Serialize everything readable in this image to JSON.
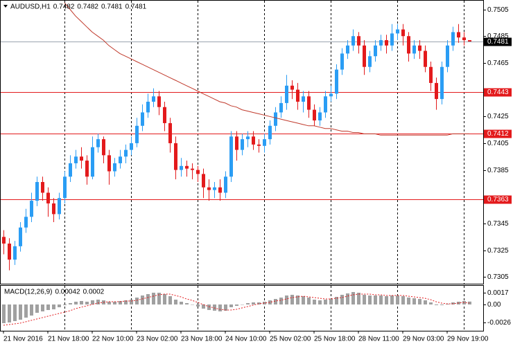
{
  "chart_data": {
    "type": "candlestick",
    "symbol": "AUDUSD,H1",
    "open": [
      0.7335,
      0.733,
      0.7318,
      0.7328,
      0.7342,
      0.735,
      0.7362,
      0.7376,
      0.7368,
      0.736,
      0.7352,
      0.7364,
      0.738,
      0.739,
      0.7395,
      0.7392,
      0.738,
      0.7402,
      0.7408,
      0.7396,
      0.7384,
      0.739,
      0.7395,
      0.74,
      0.7405,
      0.7418,
      0.7428,
      0.7436,
      0.744,
      0.7432,
      0.742,
      0.7405,
      0.7385,
      0.7388,
      0.7386,
      0.7385,
      0.7382,
      0.7372,
      0.737,
      0.7372,
      0.7368,
      0.738,
      0.741,
      0.74,
      0.7408,
      0.741,
      0.7404,
      0.7403,
      0.7408,
      0.7418,
      0.7428,
      0.7435,
      0.7448,
      0.7445,
      0.7436,
      0.744,
      0.743,
      0.7422,
      0.7428,
      0.744,
      0.7442,
      0.746,
      0.7472,
      0.7478,
      0.7485,
      0.7478,
      0.7462,
      0.747,
      0.7478,
      0.7482,
      0.7478,
      0.7487,
      0.749,
      0.7485,
      0.7472,
      0.7478,
      0.7474,
      0.7462,
      0.745,
      0.7438,
      0.7462,
      0.7478,
      0.7488,
      0.7484,
      0.7482
    ],
    "high": [
      0.734,
      0.7334,
      0.7332,
      0.7346,
      0.7356,
      0.7368,
      0.738,
      0.738,
      0.7372,
      0.7364,
      0.7368,
      0.7384,
      0.7396,
      0.74,
      0.7402,
      0.7396,
      0.741,
      0.7412,
      0.741,
      0.74,
      0.7394,
      0.74,
      0.7404,
      0.741,
      0.7424,
      0.7434,
      0.7442,
      0.7446,
      0.7444,
      0.7436,
      0.7424,
      0.741,
      0.7394,
      0.7392,
      0.739,
      0.7388,
      0.7386,
      0.7378,
      0.7376,
      0.7378,
      0.7384,
      0.7414,
      0.7414,
      0.7412,
      0.7414,
      0.7414,
      0.7408,
      0.7412,
      0.7422,
      0.7432,
      0.744,
      0.7456,
      0.7452,
      0.745,
      0.7444,
      0.7444,
      0.7434,
      0.7432,
      0.7444,
      0.7448,
      0.7464,
      0.7476,
      0.7482,
      0.749,
      0.7488,
      0.7482,
      0.7474,
      0.7482,
      0.7486,
      0.7486,
      0.7494,
      0.7494,
      0.7494,
      0.7488,
      0.7482,
      0.7482,
      0.7478,
      0.7466,
      0.7454,
      0.7466,
      0.7482,
      0.7492,
      0.7494,
      0.7488,
      0.7482
    ],
    "low": [
      0.7322,
      0.731,
      0.7314,
      0.7324,
      0.7338,
      0.7346,
      0.7358,
      0.7362,
      0.735,
      0.7346,
      0.7348,
      0.736,
      0.7376,
      0.7386,
      0.7386,
      0.7374,
      0.7378,
      0.7398,
      0.739,
      0.7374,
      0.738,
      0.7386,
      0.739,
      0.7396,
      0.7402,
      0.7414,
      0.7424,
      0.7432,
      0.7426,
      0.7414,
      0.7398,
      0.7378,
      0.738,
      0.738,
      0.7378,
      0.7376,
      0.7364,
      0.7362,
      0.7364,
      0.7362,
      0.7364,
      0.7376,
      0.7392,
      0.7396,
      0.7402,
      0.74,
      0.7398,
      0.7398,
      0.7404,
      0.7414,
      0.7424,
      0.743,
      0.7438,
      0.743,
      0.7428,
      0.7424,
      0.7418,
      0.7418,
      0.7424,
      0.7436,
      0.7438,
      0.7456,
      0.7468,
      0.7474,
      0.7472,
      0.7456,
      0.7458,
      0.7466,
      0.7474,
      0.7472,
      0.7474,
      0.7482,
      0.7478,
      0.7466,
      0.7468,
      0.7468,
      0.7458,
      0.7444,
      0.743,
      0.7434,
      0.7458,
      0.7474,
      0.748,
      0.7478,
      0.7481
    ],
    "close": [
      0.733,
      0.7318,
      0.7328,
      0.7342,
      0.735,
      0.7362,
      0.7376,
      0.7368,
      0.736,
      0.7352,
      0.7364,
      0.738,
      0.739,
      0.7395,
      0.7392,
      0.738,
      0.7402,
      0.7408,
      0.7396,
      0.7384,
      0.739,
      0.7395,
      0.74,
      0.7405,
      0.7418,
      0.7428,
      0.7436,
      0.744,
      0.7432,
      0.742,
      0.7405,
      0.7385,
      0.7388,
      0.7386,
      0.7385,
      0.7382,
      0.7372,
      0.737,
      0.7372,
      0.7368,
      0.738,
      0.741,
      0.74,
      0.7408,
      0.741,
      0.7404,
      0.7403,
      0.7408,
      0.7418,
      0.7428,
      0.7435,
      0.7448,
      0.7445,
      0.7436,
      0.744,
      0.743,
      0.7422,
      0.7428,
      0.744,
      0.7442,
      0.746,
      0.7472,
      0.7478,
      0.7485,
      0.7478,
      0.7462,
      0.747,
      0.7478,
      0.7482,
      0.7478,
      0.7487,
      0.749,
      0.7485,
      0.7472,
      0.7478,
      0.7474,
      0.7462,
      0.745,
      0.7438,
      0.7462,
      0.7478,
      0.7488,
      0.7484,
      0.7482,
      0.7481
    ],
    "ma": [
      null,
      null,
      null,
      null,
      null,
      null,
      null,
      null,
      null,
      null,
      null,
      0.751,
      0.7505,
      0.75,
      0.7496,
      0.7492,
      0.7488,
      0.7485,
      0.7482,
      0.7478,
      0.7475,
      0.7472,
      0.747,
      0.7468,
      0.7466,
      0.7464,
      0.7462,
      0.746,
      0.7458,
      0.7456,
      0.7454,
      0.7452,
      0.745,
      0.7448,
      0.7446,
      0.7444,
      0.7442,
      0.744,
      0.7438,
      0.7436,
      0.7435,
      0.7433,
      0.7432,
      0.743,
      0.7429,
      0.7428,
      0.7427,
      0.7426,
      0.7425,
      0.7424,
      0.7423,
      0.7422,
      0.7421,
      0.742,
      0.7419,
      0.7418,
      0.7418,
      0.7417,
      0.7416,
      0.7416,
      0.7415,
      0.7414,
      0.7414,
      0.7413,
      0.7413,
      0.7412,
      0.7412,
      0.7412,
      0.7411,
      0.7411,
      0.7411,
      0.7411,
      0.7411,
      0.7411,
      0.7411,
      0.7411,
      0.7411,
      0.7411,
      0.7411,
      0.7411,
      0.7411,
      0.7412,
      0.7412,
      0.7412,
      0.7412
    ],
    "up_color": "#2a9df4",
    "down_color": "#e31a1c",
    "ma_color": "#c0392b",
    "ylim": [
      0.73,
      0.7512
    ],
    "yticks": [
      0.7505,
      0.7485,
      0.7465,
      0.7425,
      0.7405,
      0.7385,
      0.7345,
      0.7325,
      0.7305
    ],
    "levels": [
      0.7443,
      0.7412,
      0.7363
    ],
    "level_color": "#e31a1c",
    "last_price": 0.7481,
    "xlim": [
      -0.5,
      86.5
    ],
    "xticks": [
      {
        "value": 0,
        "label": "21 Nov 2016"
      },
      {
        "value": 8,
        "label": "21 Nov 18:00"
      },
      {
        "value": 16,
        "label": "22 Nov 10:00"
      },
      {
        "value": 24,
        "label": "23 Nov 02:00"
      },
      {
        "value": 32,
        "label": "23 Nov 18:00"
      },
      {
        "value": 40,
        "label": "24 Nov 10:00"
      },
      {
        "value": 48,
        "label": "25 Nov 02:00"
      },
      {
        "value": 56,
        "label": "25 Nov 18:00"
      },
      {
        "value": 64,
        "label": "28 Nov 11:00"
      },
      {
        "value": 72,
        "label": "29 Nov 03:00"
      },
      {
        "value": 80,
        "label": "29 Nov 19:00"
      }
    ],
    "xgrid": [
      11,
      23,
      35,
      47,
      59,
      71,
      83
    ],
    "macd": {
      "label": "MACD(12,26,9)",
      "hist": [
        -0.0027,
        -0.0026,
        -0.0024,
        -0.0022,
        -0.0019,
        -0.0016,
        -0.0012,
        -0.001,
        -0.0008,
        -0.0007,
        -0.0004,
        -0.0001,
        0.0002,
        0.0004,
        0.0005,
        0.0004,
        0.0006,
        0.0007,
        0.0006,
        0.0004,
        0.0004,
        0.0005,
        0.0006,
        0.0007,
        0.001,
        0.0013,
        0.0015,
        0.0017,
        0.0017,
        0.0015,
        0.0012,
        0.0007,
        0.0004,
        0.0002,
        0.0,
        -0.0003,
        -0.0006,
        -0.0008,
        -0.0009,
        -0.001,
        -0.0009,
        -0.0004,
        -0.0002,
        0.0,
        0.0002,
        0.0003,
        0.0003,
        0.0004,
        0.0006,
        0.0008,
        0.001,
        0.0013,
        0.0014,
        0.0013,
        0.0012,
        0.001,
        0.0007,
        0.0006,
        0.0007,
        0.0008,
        0.0011,
        0.0014,
        0.0016,
        0.0018,
        0.0017,
        0.0014,
        0.0013,
        0.0013,
        0.0013,
        0.0012,
        0.0013,
        0.0013,
        0.0012,
        0.001,
        0.0009,
        0.0008,
        0.0006,
        0.0003,
        -0.0001,
        -0.0001,
        0.0001,
        0.0003,
        0.0004,
        0.0005,
        0.00042
      ],
      "signal": [
        -0.003,
        -0.0029,
        -0.0028,
        -0.0027,
        -0.0025,
        -0.0023,
        -0.0021,
        -0.0019,
        -0.0017,
        -0.0015,
        -0.0013,
        -0.0011,
        -0.0009,
        -0.0006,
        -0.0004,
        -0.0002,
        0.0,
        0.0002,
        0.0003,
        0.0004,
        0.0004,
        0.0004,
        0.0005,
        0.0005,
        0.0006,
        0.0008,
        0.001,
        0.0012,
        0.0014,
        0.0015,
        0.0015,
        0.0013,
        0.0011,
        0.0008,
        0.0006,
        0.0003,
        0.0,
        -0.0003,
        -0.0005,
        -0.0007,
        -0.0008,
        -0.0008,
        -0.0007,
        -0.0005,
        -0.0003,
        -0.0001,
        0.0001,
        0.0002,
        0.0003,
        0.0005,
        0.0006,
        0.0008,
        0.001,
        0.0011,
        0.0012,
        0.0011,
        0.001,
        0.0009,
        0.0008,
        0.0008,
        0.0009,
        0.001,
        0.0012,
        0.0014,
        0.0015,
        0.0015,
        0.0015,
        0.0014,
        0.0014,
        0.0013,
        0.0013,
        0.0013,
        0.0013,
        0.0012,
        0.0011,
        0.001,
        0.0009,
        0.0007,
        0.0004,
        0.0002,
        0.0001,
        0.0001,
        0.0002,
        0.0003,
        0.0002
      ],
      "hist_color": "#a0a0a0",
      "signal_color": "#e31a1c",
      "ylim": [
        -0.0038,
        0.0028
      ],
      "yticks": [
        0.0017,
        {
          "value": 0,
          "label": "0.00"
        },
        -0.0026
      ]
    }
  }
}
